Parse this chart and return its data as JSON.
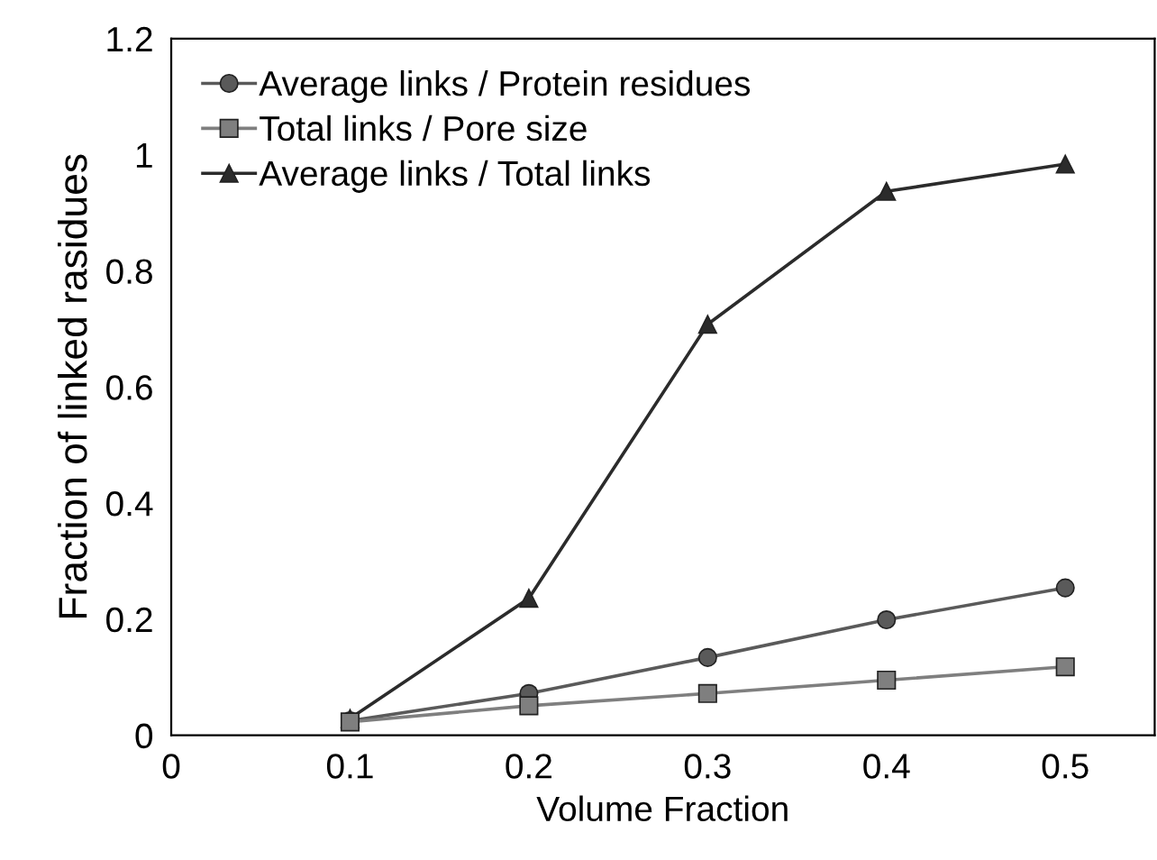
{
  "chart_data": {
    "type": "line",
    "xlabel": "Volume Fraction",
    "ylabel": "Fraction of linked rasidues",
    "x": [
      0.1,
      0.2,
      0.3,
      0.4,
      0.5
    ],
    "series": [
      {
        "name": "Average links / Protein residues",
        "color": "#5a5a5a",
        "marker": "circle",
        "values": [
          0.025,
          0.072,
          0.134,
          0.199,
          0.254
        ]
      },
      {
        "name": "Total links / Pore size",
        "color": "#7f7f7f",
        "marker": "square",
        "values": [
          0.023,
          0.051,
          0.072,
          0.095,
          0.118
        ]
      },
      {
        "name": "Average links / Total links",
        "color": "#2b2b2b",
        "marker": "triangle",
        "values": [
          0.029,
          0.236,
          0.708,
          0.937,
          0.984
        ]
      }
    ],
    "xlim": [
      0,
      0.55
    ],
    "xticks": [
      0,
      0.1,
      0.2,
      0.3,
      0.4,
      0.5
    ],
    "ylim": [
      0,
      1.2
    ],
    "yticks": [
      0,
      0.2,
      0.4,
      0.6,
      0.8,
      1,
      1.2
    ],
    "grid": false,
    "legend": "top left",
    "line_style": "solid"
  }
}
